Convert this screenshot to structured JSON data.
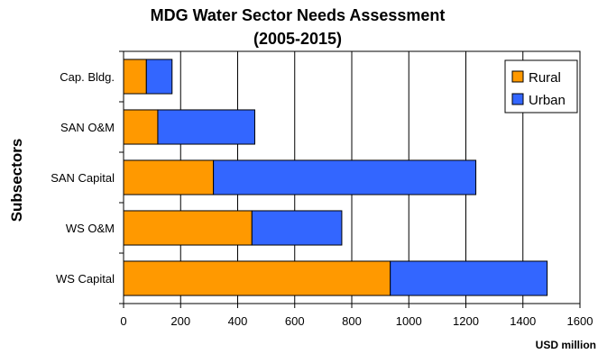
{
  "chart_data": {
    "type": "bar",
    "orientation": "horizontal",
    "stacked": true,
    "title_line1": "MDG Water Sector Needs Assessment",
    "title_line2": "(2005-2015)",
    "ylabel": "Subsectors",
    "xlabel": "USD million",
    "categories": [
      "Cap. Bldg.",
      "SAN O&M",
      "SAN Capital",
      "WS O&M",
      "WS Capital"
    ],
    "series": [
      {
        "name": "Rural",
        "color": "#FF9900",
        "values": [
          80,
          120,
          315,
          450,
          935
        ]
      },
      {
        "name": "Urban",
        "color": "#3366FF",
        "values": [
          90,
          340,
          920,
          315,
          550
        ]
      }
    ],
    "xlim": [
      0,
      1600
    ],
    "xticks": [
      "0",
      "200",
      "400",
      "600",
      "800",
      "1000",
      "1200",
      "1400",
      "1600"
    ],
    "grid": true,
    "legend_position": "top-right"
  }
}
